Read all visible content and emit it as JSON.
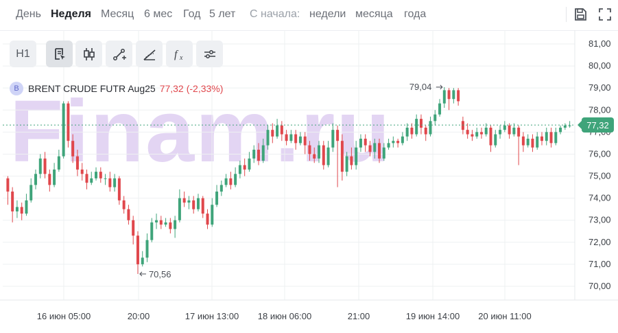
{
  "periods": [
    {
      "label": "День",
      "state": "normal"
    },
    {
      "label": "Неделя",
      "state": "active"
    },
    {
      "label": "Месяц",
      "state": "normal"
    },
    {
      "label": "6 мес",
      "state": "normal"
    },
    {
      "label": "Год",
      "state": "normal"
    },
    {
      "label": "5 лет",
      "state": "normal"
    },
    {
      "label": "С начала:",
      "state": "muted"
    },
    {
      "label": "недели",
      "state": "normal"
    },
    {
      "label": "месяца",
      "state": "normal"
    },
    {
      "label": "года",
      "state": "normal"
    }
  ],
  "top_icons": [
    "save-icon",
    "fullscreen-icon"
  ],
  "toolbar": {
    "interval_label": "H1",
    "buttons": [
      "interval",
      "templates-icon",
      "candles-icon",
      "drawing-tools-icon",
      "patterns-icon",
      "indicators-icon",
      "settings-icon"
    ]
  },
  "legend": {
    "badge": "B",
    "instrument": "BRENT CRUDE FUTR Aug25",
    "price": "77,32",
    "change": "(-2,33%)"
  },
  "watermark": "Finam.ru",
  "chart_data": {
    "type": "candlestick",
    "y_ticks": [
      "81,00",
      "80,00",
      "79,00",
      "78,00",
      "77,00",
      "76,00",
      "75,00",
      "74,00",
      "73,00",
      "72,00",
      "71,00",
      "70,00"
    ],
    "ylim": [
      69.5,
      81.3
    ],
    "x_ticks": [
      "16 июн 05:00",
      "20:00",
      "17 июн 13:00",
      "18 июн 06:00",
      "21:00",
      "19 июн 14:00",
      "20 июн 11:00"
    ],
    "current_price": "77,32",
    "current_price_value": 77.32,
    "max_label": "79,04",
    "min_label": "70,56",
    "colors": {
      "up": "#3fa47a",
      "down": "#e0474c",
      "dotted": "#3fa47a"
    },
    "candles": [
      [
        74.9,
        74.3,
        75.0,
        73.7
      ],
      [
        74.3,
        73.4,
        74.5,
        72.9
      ],
      [
        73.4,
        73.6,
        73.9,
        73.1
      ],
      [
        73.6,
        73.3,
        73.8,
        73.0
      ],
      [
        73.3,
        73.9,
        74.2,
        73.2
      ],
      [
        73.9,
        74.6,
        74.9,
        73.8
      ],
      [
        74.6,
        75.1,
        75.3,
        74.4
      ],
      [
        75.1,
        75.8,
        76.0,
        74.9
      ],
      [
        75.8,
        75.1,
        76.1,
        74.9
      ],
      [
        75.1,
        74.6,
        75.3,
        74.3
      ],
      [
        74.6,
        75.3,
        75.6,
        74.5
      ],
      [
        75.3,
        75.9,
        76.2,
        75.2
      ],
      [
        75.9,
        78.3,
        78.4,
        75.8
      ],
      [
        78.3,
        76.6,
        78.4,
        76.3
      ],
      [
        76.6,
        75.9,
        76.9,
        75.6
      ],
      [
        75.9,
        75.3,
        76.2,
        75.0
      ],
      [
        75.3,
        75.1,
        75.6,
        74.8
      ],
      [
        75.1,
        74.7,
        75.3,
        74.4
      ],
      [
        74.7,
        74.9,
        75.2,
        74.6
      ],
      [
        74.9,
        75.2,
        75.4,
        74.8
      ],
      [
        75.2,
        74.9,
        75.4,
        74.7
      ],
      [
        74.9,
        74.9,
        75.1,
        74.6
      ],
      [
        74.9,
        74.5,
        75.2,
        74.3
      ],
      [
        74.5,
        74.9,
        75.1,
        74.3
      ],
      [
        74.9,
        73.9,
        75.0,
        73.7
      ],
      [
        73.9,
        73.5,
        74.1,
        73.3
      ],
      [
        73.5,
        73.0,
        73.7,
        72.8
      ],
      [
        73.0,
        72.3,
        73.2,
        71.9
      ],
      [
        72.3,
        71.0,
        72.5,
        70.56
      ],
      [
        71.0,
        71.3,
        71.6,
        70.9
      ],
      [
        71.3,
        72.1,
        72.4,
        71.1
      ],
      [
        72.1,
        72.9,
        73.1,
        72.0
      ],
      [
        72.9,
        73.0,
        73.3,
        72.6
      ],
      [
        73.0,
        72.8,
        73.2,
        72.6
      ],
      [
        72.8,
        72.9,
        73.1,
        72.7
      ],
      [
        72.9,
        72.6,
        73.1,
        72.4
      ],
      [
        72.6,
        73.0,
        73.2,
        72.2
      ],
      [
        73.0,
        74.0,
        74.4,
        72.9
      ],
      [
        74.0,
        73.8,
        74.3,
        73.6
      ],
      [
        73.8,
        73.9,
        74.1,
        73.5
      ],
      [
        73.9,
        73.5,
        74.1,
        73.3
      ],
      [
        73.5,
        74.0,
        74.2,
        73.4
      ],
      [
        74.0,
        73.3,
        74.1,
        73.1
      ],
      [
        73.3,
        72.8,
        73.5,
        72.6
      ],
      [
        72.8,
        73.7,
        74.0,
        72.7
      ],
      [
        73.7,
        74.3,
        74.6,
        73.6
      ],
      [
        74.3,
        74.6,
        74.8,
        74.1
      ],
      [
        74.6,
        74.9,
        75.1,
        74.5
      ],
      [
        74.9,
        74.6,
        75.2,
        74.4
      ],
      [
        74.6,
        75.1,
        75.4,
        74.5
      ],
      [
        75.1,
        75.5,
        75.7,
        74.9
      ],
      [
        75.5,
        75.3,
        75.8,
        75.0
      ],
      [
        75.3,
        75.8,
        76.1,
        75.2
      ],
      [
        75.8,
        76.2,
        76.4,
        75.6
      ],
      [
        76.2,
        75.7,
        76.5,
        75.5
      ],
      [
        75.7,
        76.4,
        76.7,
        75.6
      ],
      [
        76.4,
        77.1,
        77.3,
        76.2
      ],
      [
        77.1,
        76.8,
        77.4,
        76.5
      ],
      [
        76.8,
        77.3,
        77.6,
        76.7
      ],
      [
        77.3,
        76.9,
        77.5,
        76.6
      ],
      [
        76.9,
        76.6,
        77.1,
        76.4
      ],
      [
        76.6,
        76.9,
        77.1,
        76.5
      ],
      [
        76.9,
        76.5,
        77.1,
        76.2
      ],
      [
        76.5,
        76.8,
        77.0,
        76.4
      ],
      [
        76.8,
        76.4,
        77.0,
        76.0
      ],
      [
        76.4,
        76.0,
        76.6,
        75.7
      ],
      [
        76.0,
        75.8,
        76.3,
        75.6
      ],
      [
        75.8,
        76.4,
        76.6,
        75.6
      ],
      [
        76.4,
        75.5,
        76.6,
        75.3
      ],
      [
        75.5,
        76.3,
        76.6,
        75.4
      ],
      [
        76.3,
        77.1,
        77.4,
        76.1
      ],
      [
        77.1,
        76.6,
        77.3,
        74.5
      ],
      [
        76.6,
        75.2,
        76.9,
        74.8
      ],
      [
        75.2,
        75.9,
        76.1,
        75.0
      ],
      [
        75.9,
        75.5,
        76.3,
        75.3
      ],
      [
        75.5,
        76.3,
        76.6,
        75.3
      ],
      [
        76.3,
        76.7,
        76.9,
        76.1
      ],
      [
        76.7,
        76.4,
        76.9,
        76.1
      ],
      [
        76.4,
        76.1,
        76.6,
        75.9
      ],
      [
        76.1,
        76.5,
        76.7,
        75.8
      ],
      [
        76.5,
        75.8,
        76.7,
        75.6
      ],
      [
        75.8,
        76.3,
        76.5,
        75.7
      ],
      [
        76.3,
        76.5,
        76.7,
        76.2
      ],
      [
        76.5,
        76.6,
        76.8,
        76.3
      ],
      [
        76.6,
        76.5,
        76.7,
        76.3
      ],
      [
        76.5,
        76.8,
        77.0,
        76.4
      ],
      [
        76.8,
        77.2,
        77.4,
        76.6
      ],
      [
        77.2,
        76.9,
        77.4,
        76.7
      ],
      [
        76.9,
        77.6,
        77.8,
        76.8
      ],
      [
        77.6,
        77.2,
        77.8,
        76.9
      ],
      [
        77.2,
        76.9,
        77.3,
        76.6
      ],
      [
        76.9,
        77.5,
        77.7,
        76.8
      ],
      [
        77.5,
        77.8,
        78.0,
        77.3
      ],
      [
        77.8,
        78.3,
        78.5,
        77.7
      ],
      [
        78.3,
        78.9,
        79.04,
        78.1
      ],
      [
        78.9,
        78.5,
        79.0,
        78.0
      ],
      [
        78.5,
        78.9,
        79.0,
        78.3
      ],
      [
        78.9,
        78.4,
        79.0,
        78.2
      ],
      [
        77.5,
        77.1,
        77.7,
        76.9
      ],
      [
        77.1,
        76.9,
        77.4,
        76.7
      ],
      [
        76.9,
        76.8,
        77.1,
        76.6
      ],
      [
        76.8,
        77.0,
        77.2,
        76.7
      ],
      [
        77.0,
        76.9,
        77.2,
        76.7
      ],
      [
        76.9,
        77.2,
        77.4,
        76.8
      ],
      [
        77.2,
        76.4,
        77.3,
        76.1
      ],
      [
        76.4,
        76.9,
        77.1,
        76.3
      ],
      [
        76.9,
        77.1,
        77.3,
        76.7
      ],
      [
        77.1,
        77.3,
        77.5,
        77.0
      ],
      [
        77.3,
        76.9,
        77.4,
        76.7
      ],
      [
        76.9,
        77.2,
        77.4,
        76.8
      ],
      [
        77.2,
        76.8,
        77.3,
        75.5
      ],
      [
        76.8,
        76.4,
        77.0,
        76.1
      ],
      [
        76.4,
        76.7,
        76.9,
        76.3
      ],
      [
        76.7,
        76.3,
        76.9,
        76.1
      ],
      [
        76.3,
        76.8,
        77.0,
        76.2
      ],
      [
        76.8,
        76.6,
        77.0,
        76.4
      ],
      [
        76.6,
        77.0,
        77.2,
        76.4
      ],
      [
        77.0,
        76.5,
        77.2,
        76.3
      ],
      [
        76.5,
        77.0,
        77.2,
        76.4
      ],
      [
        77.0,
        77.2,
        77.3,
        76.9
      ],
      [
        77.2,
        77.3,
        77.4,
        77.1
      ],
      [
        77.3,
        77.3,
        77.5,
        77.2
      ]
    ]
  }
}
